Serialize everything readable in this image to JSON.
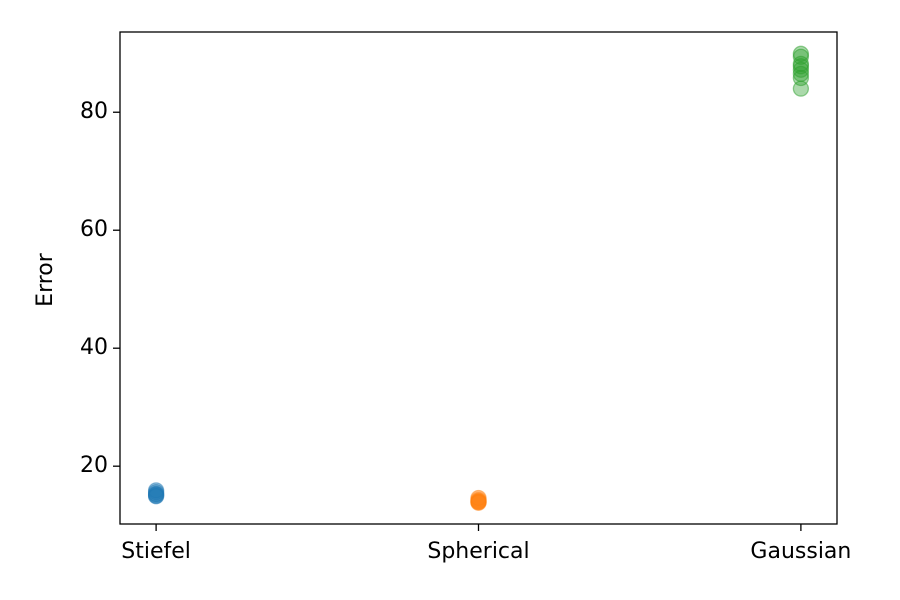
{
  "chart_data": {
    "type": "strip",
    "y_label": "Error",
    "categories": [
      "Stiefel",
      "Spherical",
      "Gaussian"
    ],
    "colors": [
      "#1f77b4",
      "#ff7f0e",
      "#2ca02c"
    ],
    "values": [
      [
        15.0,
        15.3,
        15.6,
        15.9,
        15.2,
        14.9
      ],
      [
        13.8,
        14.0,
        14.3,
        14.6,
        14.1,
        13.9
      ],
      [
        84.0,
        85.8,
        86.5,
        87.2,
        87.8,
        88.2,
        89.4,
        89.9
      ]
    ],
    "ylim": [
      10.2,
      93.6
    ],
    "yticks": [
      20,
      40,
      60,
      80
    ],
    "grid": false
  }
}
